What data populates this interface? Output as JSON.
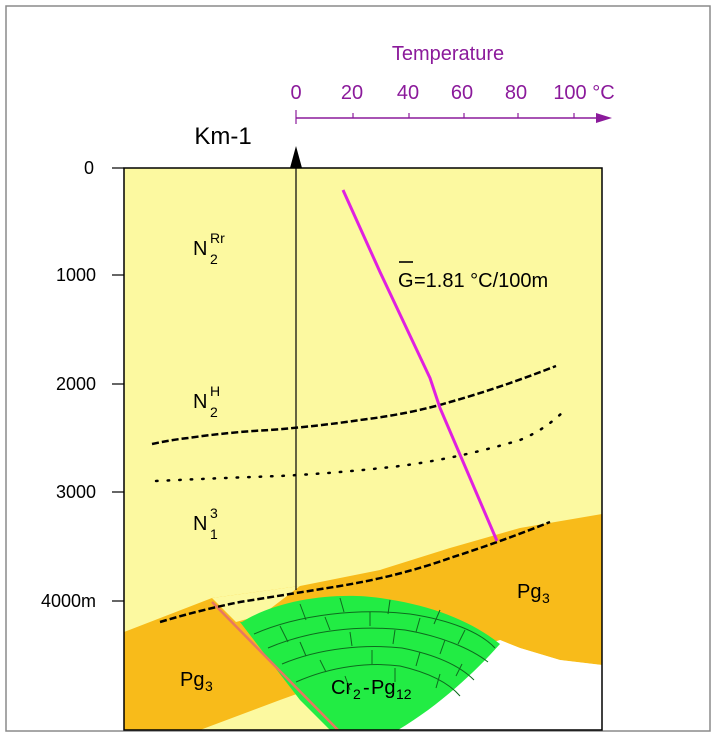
{
  "well": {
    "name": "Km-1"
  },
  "temperature_axis": {
    "title": "Temperature",
    "ticks": [
      "0",
      "20",
      "40",
      "60",
      "80",
      "100 °C"
    ],
    "color": "#8b1a9b"
  },
  "depth_axis": {
    "ticks": [
      "0",
      "1000",
      "2000",
      "3000",
      "4000m"
    ]
  },
  "gradient": {
    "symbol": "G",
    "value_text": "=1.81 °C/100m",
    "line_color": "#e020e0"
  },
  "formations": [
    {
      "base": "N",
      "sub": "2",
      "sup": "Rr"
    },
    {
      "base": "N",
      "sub": "2",
      "sup": "H"
    },
    {
      "base": "N",
      "sub": "1",
      "sup": "3"
    }
  ],
  "units": {
    "pg3_right": {
      "base": "Pg",
      "sub": "3"
    },
    "pg3_left": {
      "base": "Pg",
      "sub": "3"
    },
    "cr_pg": {
      "base1": "Cr",
      "sub1": "2",
      "dash": "-",
      "base2": "Pg",
      "sub2": "12"
    }
  },
  "colors": {
    "neogene_fill": "#fcf9a0",
    "paleogene_fill": "#f8bb1a",
    "cretaceous_fill": "#22ec44",
    "fault": "#e87860",
    "frame": "#000000",
    "outer_frame": "#8a8a8a"
  }
}
